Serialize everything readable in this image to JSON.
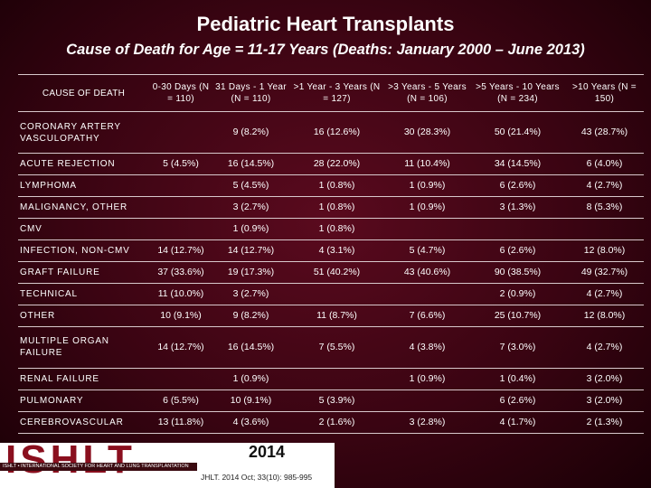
{
  "header": {
    "title": "Pediatric Heart Transplants",
    "subtitle": "Cause of Death for Age = 11-17 Years (Deaths: January 2000 – June 2013)"
  },
  "table": {
    "columns": [
      "CAUSE OF DEATH",
      "0-30 Days (N = 110)",
      "31 Days - 1 Year (N = 110)",
      ">1 Year - 3 Years (N = 127)",
      ">3 Years - 5 Years (N = 106)",
      ">5 Years - 10 Years (N = 234)",
      ">10 Years (N = 150)"
    ],
    "rows": [
      [
        "CORONARY ARTERY VASCULOPATHY",
        null,
        "9 (8.2%)",
        "16 (12.6%)",
        "30 (28.3%)",
        "50 (21.4%)",
        "43 (28.7%)"
      ],
      [
        "ACUTE REJECTION",
        "5 (4.5%)",
        "16 (14.5%)",
        "28 (22.0%)",
        "11 (10.4%)",
        "34 (14.5%)",
        "6 (4.0%)"
      ],
      [
        "LYMPHOMA",
        null,
        "5 (4.5%)",
        "1 (0.8%)",
        "1 (0.9%)",
        "6 (2.6%)",
        "4 (2.7%)"
      ],
      [
        "MALIGNANCY, OTHER",
        null,
        "3 (2.7%)",
        "1 (0.8%)",
        "1 (0.9%)",
        "3 (1.3%)",
        "8 (5.3%)"
      ],
      [
        "CMV",
        null,
        "1 (0.9%)",
        "1 (0.8%)",
        null,
        null,
        null
      ],
      [
        "INFECTION, NON-CMV",
        "14 (12.7%)",
        "14 (12.7%)",
        "4 (3.1%)",
        "5 (4.7%)",
        "6 (2.6%)",
        "12 (8.0%)"
      ],
      [
        "GRAFT FAILURE",
        "37 (33.6%)",
        "19 (17.3%)",
        "51 (40.2%)",
        "43 (40.6%)",
        "90 (38.5%)",
        "49 (32.7%)"
      ],
      [
        "TECHNICAL",
        "11 (10.0%)",
        "3 (2.7%)",
        null,
        null,
        "2 (0.9%)",
        "4 (2.7%)"
      ],
      [
        "OTHER",
        "10 (9.1%)",
        "9 (8.2%)",
        "11 (8.7%)",
        "7 (6.6%)",
        "25 (10.7%)",
        "12 (8.0%)"
      ],
      [
        "MULTIPLE ORGAN FAILURE",
        "14 (12.7%)",
        "16 (14.5%)",
        "7 (5.5%)",
        "4 (3.8%)",
        "7 (3.0%)",
        "4 (2.7%)"
      ],
      [
        "RENAL FAILURE",
        null,
        "1 (0.9%)",
        null,
        "1 (0.9%)",
        "1 (0.4%)",
        "3 (2.0%)"
      ],
      [
        "PULMONARY",
        "6 (5.5%)",
        "10 (9.1%)",
        "5 (3.9%)",
        null,
        "6 (2.6%)",
        "3 (2.0%)"
      ],
      [
        "CEREBROVASCULAR",
        "13 (11.8%)",
        "4 (3.6%)",
        "2 (1.6%)",
        "3 (2.8%)",
        "4 (1.7%)",
        "2 (1.3%)"
      ]
    ]
  },
  "footer": {
    "logo": "ISHLT",
    "society": "ISHLT • INTERNATIONAL SOCIETY FOR HEART AND LUNG TRANSPLANTATION",
    "year": "2014",
    "citation": "JHLT. 2014 Oct; 33(10): 985-995"
  }
}
